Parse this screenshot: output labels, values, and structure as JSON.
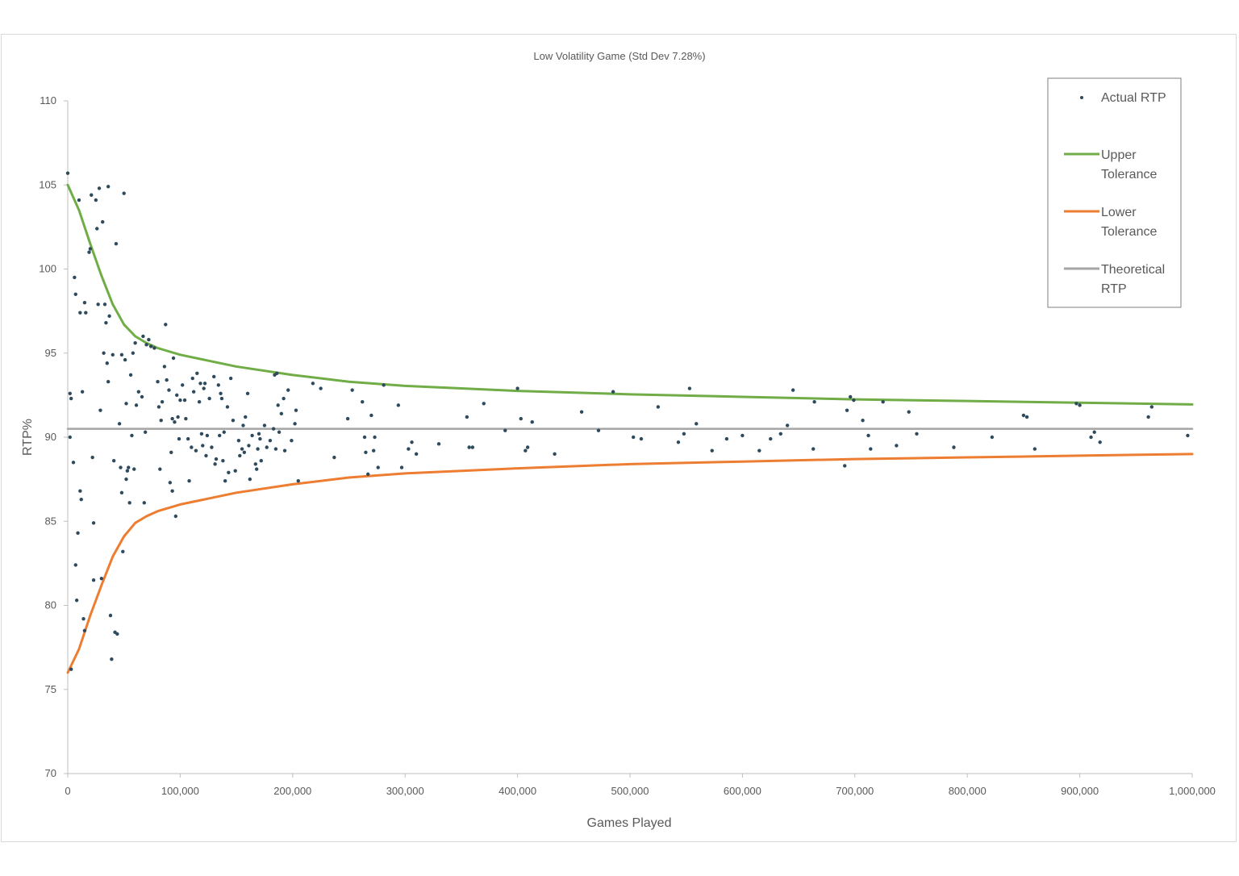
{
  "chart_data": {
    "type": "scatter",
    "title": "Low Volatility Game (Std Dev 7.28%)",
    "xlabel": "Games Played",
    "ylabel": "RTP%",
    "xlim": [
      0,
      1000000
    ],
    "ylim": [
      70,
      110
    ],
    "x_ticks": [
      0,
      100000,
      200000,
      300000,
      400000,
      500000,
      600000,
      700000,
      800000,
      900000,
      1000000
    ],
    "x_tick_labels": [
      "0",
      "100,000",
      "200,000",
      "300,000",
      "400,000",
      "500,000",
      "600,000",
      "700,000",
      "800,000",
      "900,000",
      "1,000,000"
    ],
    "y_ticks": [
      70,
      75,
      80,
      85,
      90,
      95,
      100,
      105,
      110
    ],
    "y_tick_labels": [
      "70",
      "75",
      "80",
      "85",
      "90",
      "95",
      "100",
      "105",
      "110"
    ],
    "grid": false,
    "legend_position": "top-right",
    "colors": {
      "actual": "#2e4a5c",
      "upper": "#70ad47",
      "lower": "#ed7d31",
      "theoretical": "#a5a5a5"
    },
    "series": [
      {
        "name": "Actual RTP",
        "kind": "scatter",
        "points": [
          [
            0,
            105.7
          ],
          [
            2000,
            92.6
          ],
          [
            3000,
            92.3
          ],
          [
            2000,
            90
          ],
          [
            3000,
            76.2
          ],
          [
            5000,
            88.5
          ],
          [
            6000,
            99.5
          ],
          [
            7000,
            98.5
          ],
          [
            7000,
            82.4
          ],
          [
            8000,
            80.3
          ],
          [
            9000,
            84.3
          ],
          [
            10000,
            104.1
          ],
          [
            11000,
            97.4
          ],
          [
            11000,
            86.8
          ],
          [
            12000,
            86.3
          ],
          [
            13000,
            92.7
          ],
          [
            14000,
            79.2
          ],
          [
            15000,
            98
          ],
          [
            15000,
            78.5
          ],
          [
            16000,
            97.4
          ],
          [
            19000,
            101
          ],
          [
            20000,
            101.2
          ],
          [
            21000,
            104.4
          ],
          [
            22000,
            88.8
          ],
          [
            23000,
            84.9
          ],
          [
            23000,
            81.5
          ],
          [
            25000,
            104.1
          ],
          [
            26000,
            102.4
          ],
          [
            27000,
            97.9
          ],
          [
            28000,
            104.8
          ],
          [
            29000,
            91.6
          ],
          [
            30000,
            81.6
          ],
          [
            31000,
            102.8
          ],
          [
            32000,
            95
          ],
          [
            33000,
            97.9
          ],
          [
            34000,
            96.8
          ],
          [
            35000,
            94.4
          ],
          [
            36000,
            93.3
          ],
          [
            36000,
            104.9
          ],
          [
            37000,
            97.2
          ],
          [
            38000,
            79.4
          ],
          [
            39000,
            76.8
          ],
          [
            40000,
            94.9
          ],
          [
            41000,
            88.6
          ],
          [
            42000,
            78.4
          ],
          [
            43000,
            101.5
          ],
          [
            44000,
            78.3
          ],
          [
            46000,
            90.8
          ],
          [
            47000,
            88.2
          ],
          [
            48000,
            86.7
          ],
          [
            48000,
            94.9
          ],
          [
            49000,
            83.2
          ],
          [
            50000,
            104.5
          ],
          [
            51000,
            94.6
          ],
          [
            52000,
            87.5
          ],
          [
            52000,
            92
          ],
          [
            53000,
            88
          ],
          [
            54000,
            88.2
          ],
          [
            55000,
            86.1
          ],
          [
            56000,
            93.7
          ],
          [
            57000,
            90.1
          ],
          [
            58000,
            95
          ],
          [
            59000,
            88.1
          ],
          [
            60000,
            95.6
          ],
          [
            61000,
            91.9
          ],
          [
            63000,
            92.7
          ],
          [
            66000,
            92.4
          ],
          [
            67000,
            96
          ],
          [
            68000,
            86.1
          ],
          [
            69000,
            90.3
          ],
          [
            70000,
            95.5
          ],
          [
            72000,
            95.8
          ],
          [
            74000,
            95.4
          ],
          [
            77000,
            95.3
          ],
          [
            80000,
            93.3
          ],
          [
            81000,
            91.8
          ],
          [
            82000,
            88.1
          ],
          [
            83000,
            91
          ],
          [
            84000,
            92.1
          ],
          [
            86000,
            94.2
          ],
          [
            87000,
            96.7
          ],
          [
            88000,
            93.4
          ],
          [
            90000,
            92.8
          ],
          [
            91000,
            87.3
          ],
          [
            92000,
            89.1
          ],
          [
            93000,
            86.8
          ],
          [
            93000,
            91.1
          ],
          [
            94000,
            94.7
          ],
          [
            95000,
            90.9
          ],
          [
            96000,
            85.3
          ],
          [
            97000,
            92.5
          ],
          [
            98000,
            91.2
          ],
          [
            99000,
            89.9
          ],
          [
            100000,
            92.2
          ],
          [
            102000,
            93.1
          ],
          [
            104000,
            92.2
          ],
          [
            105000,
            91.1
          ],
          [
            107000,
            89.9
          ],
          [
            108000,
            87.4
          ],
          [
            110000,
            89.4
          ],
          [
            111000,
            93.5
          ],
          [
            112000,
            92.7
          ],
          [
            114000,
            89.2
          ],
          [
            115000,
            93.8
          ],
          [
            117000,
            92.1
          ],
          [
            118000,
            93.2
          ],
          [
            119000,
            90.2
          ],
          [
            120000,
            89.5
          ],
          [
            121000,
            92.9
          ],
          [
            122000,
            93.2
          ],
          [
            123000,
            88.9
          ],
          [
            124000,
            90.1
          ],
          [
            126000,
            92.3
          ],
          [
            128000,
            89.4
          ],
          [
            130000,
            93.6
          ],
          [
            131000,
            88.4
          ],
          [
            132000,
            88.7
          ],
          [
            134000,
            93.1
          ],
          [
            135000,
            90.1
          ],
          [
            136000,
            92.6
          ],
          [
            137000,
            92.3
          ],
          [
            138000,
            88.6
          ],
          [
            139000,
            90.3
          ],
          [
            140000,
            87.4
          ],
          [
            142000,
            91.8
          ],
          [
            143000,
            87.9
          ],
          [
            145000,
            93.5
          ],
          [
            147000,
            91
          ],
          [
            149000,
            88
          ],
          [
            152000,
            89.8
          ],
          [
            153000,
            88.9
          ],
          [
            155000,
            89.3
          ],
          [
            156000,
            90.7
          ],
          [
            157000,
            89.1
          ],
          [
            158000,
            91.2
          ],
          [
            160000,
            92.6
          ],
          [
            161000,
            89.5
          ],
          [
            162000,
            87.5
          ],
          [
            164000,
            90.1
          ],
          [
            167000,
            88.4
          ],
          [
            168000,
            88.1
          ],
          [
            169000,
            89.3
          ],
          [
            170000,
            90.2
          ],
          [
            171000,
            89.9
          ],
          [
            172000,
            88.6
          ],
          [
            175000,
            90.7
          ],
          [
            177000,
            89.4
          ],
          [
            180000,
            89.8
          ],
          [
            183000,
            90.5
          ],
          [
            184000,
            93.7
          ],
          [
            185000,
            89.3
          ],
          [
            186000,
            93.8
          ],
          [
            187000,
            91.9
          ],
          [
            188000,
            90.3
          ],
          [
            190000,
            91.4
          ],
          [
            192000,
            92.3
          ],
          [
            193000,
            89.2
          ],
          [
            196000,
            92.8
          ],
          [
            199000,
            89.8
          ],
          [
            202000,
            90.8
          ],
          [
            203000,
            91.6
          ],
          [
            205000,
            87.4
          ],
          [
            218000,
            93.2
          ],
          [
            225000,
            92.9
          ],
          [
            237000,
            88.8
          ],
          [
            249000,
            91.1
          ],
          [
            253000,
            92.8
          ],
          [
            262000,
            92.1
          ],
          [
            264000,
            90
          ],
          [
            265000,
            89.1
          ],
          [
            267000,
            87.8
          ],
          [
            270000,
            91.3
          ],
          [
            272000,
            89.2
          ],
          [
            273000,
            90
          ],
          [
            276000,
            88.2
          ],
          [
            281000,
            93.1
          ],
          [
            294000,
            91.9
          ],
          [
            297000,
            88.2
          ],
          [
            303000,
            89.3
          ],
          [
            306000,
            89.7
          ],
          [
            310000,
            89
          ],
          [
            330000,
            89.6
          ],
          [
            355000,
            91.2
          ],
          [
            357000,
            89.4
          ],
          [
            360000,
            89.4
          ],
          [
            370000,
            92
          ],
          [
            389000,
            90.4
          ],
          [
            400000,
            92.9
          ],
          [
            403000,
            91.1
          ],
          [
            407000,
            89.2
          ],
          [
            409000,
            89.4
          ],
          [
            413000,
            90.9
          ],
          [
            433000,
            89
          ],
          [
            457000,
            91.5
          ],
          [
            472000,
            90.4
          ],
          [
            485000,
            92.7
          ],
          [
            503000,
            90
          ],
          [
            510000,
            89.9
          ],
          [
            525000,
            91.8
          ],
          [
            543000,
            89.7
          ],
          [
            548000,
            90.2
          ],
          [
            553000,
            92.9
          ],
          [
            559000,
            90.8
          ],
          [
            573000,
            89.2
          ],
          [
            586000,
            89.9
          ],
          [
            600000,
            90.1
          ],
          [
            615000,
            89.2
          ],
          [
            625000,
            89.9
          ],
          [
            634000,
            90.2
          ],
          [
            640000,
            90.7
          ],
          [
            645000,
            92.8
          ],
          [
            663000,
            89.3
          ],
          [
            664000,
            92.1
          ],
          [
            691000,
            88.3
          ],
          [
            693000,
            91.6
          ],
          [
            696000,
            92.4
          ],
          [
            699000,
            92.2
          ],
          [
            707000,
            91
          ],
          [
            712000,
            90.1
          ],
          [
            714000,
            89.3
          ],
          [
            725000,
            92.1
          ],
          [
            737000,
            89.5
          ],
          [
            748000,
            91.5
          ],
          [
            755000,
            90.2
          ],
          [
            788000,
            89.4
          ],
          [
            822000,
            90
          ],
          [
            850000,
            91.3
          ],
          [
            853000,
            91.2
          ],
          [
            860000,
            89.3
          ],
          [
            897000,
            92
          ],
          [
            900000,
            91.9
          ],
          [
            910000,
            90
          ],
          [
            913000,
            90.3
          ],
          [
            918000,
            89.7
          ],
          [
            961000,
            91.2
          ],
          [
            964000,
            91.8
          ],
          [
            996000,
            90.1
          ]
        ]
      },
      {
        "name": "Upper Tolerance",
        "kind": "line",
        "points": [
          [
            0,
            105
          ],
          [
            10000,
            103.5
          ],
          [
            20000,
            101.5
          ],
          [
            30000,
            99.6
          ],
          [
            40000,
            97.9
          ],
          [
            50000,
            96.7
          ],
          [
            60000,
            96
          ],
          [
            70000,
            95.6
          ],
          [
            80000,
            95.3
          ],
          [
            100000,
            94.9
          ],
          [
            150000,
            94.2
          ],
          [
            200000,
            93.7
          ],
          [
            250000,
            93.3
          ],
          [
            300000,
            93.05
          ],
          [
            350000,
            92.9
          ],
          [
            400000,
            92.75
          ],
          [
            500000,
            92.55
          ],
          [
            600000,
            92.4
          ],
          [
            700000,
            92.25
          ],
          [
            800000,
            92.15
          ],
          [
            900000,
            92.05
          ],
          [
            1000000,
            91.95
          ]
        ]
      },
      {
        "name": "Lower Tolerance",
        "kind": "line",
        "points": [
          [
            0,
            76
          ],
          [
            10000,
            77.4
          ],
          [
            20000,
            79.4
          ],
          [
            30000,
            81.2
          ],
          [
            40000,
            82.9
          ],
          [
            50000,
            84.1
          ],
          [
            60000,
            84.9
          ],
          [
            70000,
            85.3
          ],
          [
            80000,
            85.6
          ],
          [
            100000,
            86
          ],
          [
            150000,
            86.7
          ],
          [
            200000,
            87.2
          ],
          [
            250000,
            87.6
          ],
          [
            300000,
            87.85
          ],
          [
            350000,
            88
          ],
          [
            400000,
            88.15
          ],
          [
            500000,
            88.4
          ],
          [
            600000,
            88.55
          ],
          [
            700000,
            88.7
          ],
          [
            800000,
            88.8
          ],
          [
            900000,
            88.9
          ],
          [
            1000000,
            89
          ]
        ]
      },
      {
        "name": "Theoretical RTP",
        "kind": "line",
        "points": [
          [
            0,
            90.5
          ],
          [
            1000000,
            90.5
          ]
        ]
      }
    ],
    "legend": {
      "actual": "Actual RTP",
      "upper_1": "Upper",
      "upper_2": "Tolerance",
      "lower_1": "Lower",
      "lower_2": "Tolerance",
      "theoretical_1": "Theoretical",
      "theoretical_2": "RTP"
    }
  }
}
